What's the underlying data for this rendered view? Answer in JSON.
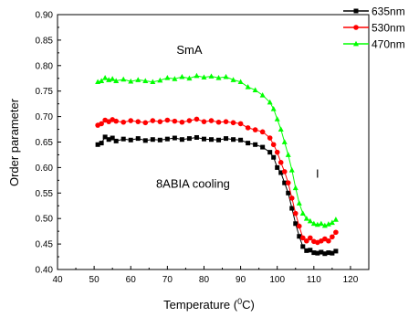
{
  "chart_data": {
    "type": "line",
    "title": "",
    "xlabel": "Temperature (",
    "xlabel_sup": "0",
    "xlabel_tail": "C)",
    "ylabel": "Order parameter",
    "xlim": [
      40,
      125
    ],
    "ylim": [
      0.4,
      0.9
    ],
    "xticks": [
      "40",
      "50",
      "60",
      "70",
      "80",
      "90",
      "100",
      "110",
      "120"
    ],
    "yticks": [
      "0.40",
      "0.45",
      "0.50",
      "0.55",
      "0.60",
      "0.65",
      "0.70",
      "0.75",
      "0.80",
      "0.85",
      "0.90"
    ],
    "grid": false,
    "legend_position": "top-right",
    "annotations": [
      {
        "text": "SmA",
        "x": 76,
        "y": 0.823
      },
      {
        "text": "8ABIA cooling",
        "x": 77,
        "y": 0.56
      },
      {
        "text": "I",
        "x": 111,
        "y": 0.58
      }
    ],
    "series": [
      {
        "name": "635nm",
        "color": "#000000",
        "marker": "square",
        "x": [
          51,
          52,
          53,
          54,
          55,
          56,
          58,
          60,
          62,
          64,
          66,
          68,
          70,
          72,
          74,
          76,
          78,
          80,
          82,
          84,
          86,
          88,
          90,
          92,
          94,
          96,
          98,
          99,
          100,
          101,
          102,
          103,
          104,
          105,
          106,
          107,
          108,
          109,
          110,
          111,
          112,
          113,
          114,
          115,
          116
        ],
        "values": [
          0.645,
          0.648,
          0.66,
          0.655,
          0.658,
          0.652,
          0.656,
          0.654,
          0.657,
          0.653,
          0.655,
          0.654,
          0.656,
          0.658,
          0.655,
          0.657,
          0.659,
          0.656,
          0.655,
          0.654,
          0.657,
          0.655,
          0.654,
          0.648,
          0.645,
          0.64,
          0.63,
          0.62,
          0.6,
          0.59,
          0.57,
          0.55,
          0.52,
          0.49,
          0.465,
          0.445,
          0.437,
          0.438,
          0.433,
          0.432,
          0.434,
          0.431,
          0.433,
          0.432,
          0.436
        ]
      },
      {
        "name": "530nm",
        "color": "#ff0000",
        "marker": "circle",
        "x": [
          51,
          52,
          53,
          54,
          55,
          56,
          58,
          60,
          62,
          64,
          66,
          68,
          70,
          72,
          74,
          76,
          78,
          80,
          82,
          84,
          86,
          88,
          90,
          92,
          94,
          96,
          98,
          99,
          100,
          101,
          102,
          103,
          104,
          105,
          106,
          107,
          108,
          109,
          110,
          111,
          112,
          113,
          114,
          115,
          116
        ],
        "values": [
          0.683,
          0.686,
          0.693,
          0.69,
          0.694,
          0.691,
          0.689,
          0.692,
          0.69,
          0.688,
          0.692,
          0.69,
          0.693,
          0.691,
          0.689,
          0.692,
          0.695,
          0.69,
          0.692,
          0.689,
          0.69,
          0.688,
          0.686,
          0.678,
          0.674,
          0.67,
          0.658,
          0.645,
          0.63,
          0.61,
          0.592,
          0.57,
          0.54,
          0.51,
          0.485,
          0.462,
          0.456,
          0.462,
          0.455,
          0.453,
          0.456,
          0.46,
          0.456,
          0.464,
          0.473
        ]
      },
      {
        "name": "470nm",
        "color": "#00ff00",
        "marker": "triangle",
        "x": [
          51,
          52,
          53,
          54,
          55,
          56,
          58,
          60,
          62,
          64,
          66,
          68,
          70,
          72,
          74,
          76,
          78,
          80,
          82,
          84,
          86,
          88,
          90,
          92,
          94,
          96,
          98,
          99,
          100,
          101,
          102,
          103,
          104,
          105,
          106,
          107,
          108,
          109,
          110,
          111,
          112,
          113,
          114,
          115,
          116
        ],
        "values": [
          0.768,
          0.77,
          0.776,
          0.772,
          0.774,
          0.77,
          0.773,
          0.769,
          0.772,
          0.77,
          0.768,
          0.771,
          0.776,
          0.774,
          0.778,
          0.775,
          0.78,
          0.777,
          0.779,
          0.776,
          0.778,
          0.772,
          0.768,
          0.758,
          0.752,
          0.742,
          0.728,
          0.715,
          0.695,
          0.675,
          0.65,
          0.625,
          0.595,
          0.56,
          0.53,
          0.51,
          0.5,
          0.495,
          0.49,
          0.488,
          0.49,
          0.486,
          0.489,
          0.492,
          0.498
        ]
      }
    ]
  }
}
